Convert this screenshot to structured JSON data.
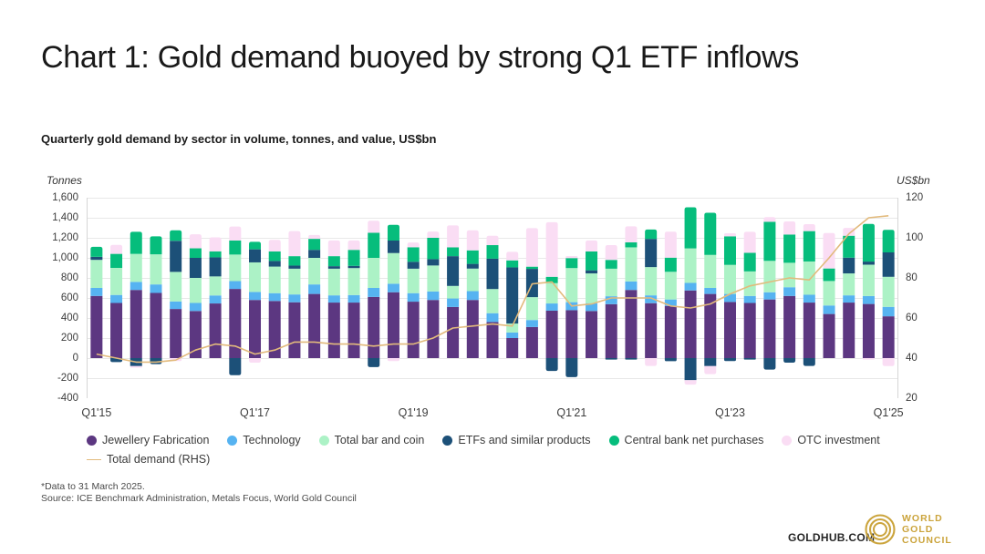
{
  "title": "Chart 1: Gold demand buoyed by strong Q1 ETF inflows",
  "subtitle": "Quarterly gold demand by sector in volume, tonnes, and value, US$bn",
  "footnote": {
    "line1": "*Data to 31 March 2025.",
    "line2": "Source: ICE Benchmark Administration, Metals Focus, World Gold Council"
  },
  "branding": {
    "goldhub": "GOLDHUB.COM",
    "logo_lines": [
      "WORLD",
      "GOLD",
      "COUNCIL"
    ],
    "logo_color": "#CBA43C"
  },
  "chart_data": {
    "type": "stacked-bar+line",
    "left_axis": {
      "title": "Tonnes",
      "min": -400,
      "max": 1600,
      "step": 200
    },
    "right_axis": {
      "title": "US$bn",
      "min": 20,
      "max": 120,
      "step": 20
    },
    "grid": {
      "color": "#e8e8e8",
      "border_color": "#d6d6d6"
    },
    "x_tick_labels": [
      "Q1'15",
      "Q1'17",
      "Q1'19",
      "Q1'21",
      "Q1'23",
      "Q1'25"
    ],
    "x_tick_indices": [
      0,
      8,
      16,
      24,
      32,
      40
    ],
    "categories": [
      "Q1'15",
      "Q2'15",
      "Q3'15",
      "Q4'15",
      "Q1'16",
      "Q2'16",
      "Q3'16",
      "Q4'16",
      "Q1'17",
      "Q2'17",
      "Q3'17",
      "Q4'17",
      "Q1'18",
      "Q2'18",
      "Q3'18",
      "Q4'18",
      "Q1'19",
      "Q2'19",
      "Q3'19",
      "Q4'19",
      "Q1'20",
      "Q2'20",
      "Q3'20",
      "Q4'20",
      "Q1'21",
      "Q2'21",
      "Q3'21",
      "Q4'21",
      "Q1'22",
      "Q2'22",
      "Q3'22",
      "Q4'22",
      "Q1'23",
      "Q2'23",
      "Q3'23",
      "Q4'23",
      "Q1'24",
      "Q2'24",
      "Q3'24",
      "Q4'24",
      "Q1'25"
    ],
    "series": [
      {
        "name": "Jewellery Fabrication",
        "color": "#5C3781",
        "values": [
          620,
          550,
          680,
          650,
          490,
          470,
          545,
          690,
          580,
          570,
          557,
          640,
          554,
          554,
          610,
          657,
          563,
          580,
          510,
          580,
          360,
          200,
          310,
          473,
          478,
          470,
          538,
          680,
          548,
          520,
          675,
          640,
          560,
          550,
          585,
          620,
          554,
          440,
          554,
          540,
          417
        ]
      },
      {
        "name": "Technology",
        "color": "#56B3F1",
        "values": [
          80,
          80,
          80,
          85,
          75,
          80,
          80,
          78,
          80,
          78,
          78,
          95,
          72,
          75,
          90,
          85,
          85,
          85,
          85,
          88,
          88,
          55,
          70,
          72,
          80,
          78,
          79,
          85,
          78,
          65,
          75,
          60,
          80,
          70,
          72,
          87,
          78,
          85,
          72,
          79,
          94
        ]
      },
      {
        "name": "Total bar and coin",
        "color": "#ACF2C6",
        "values": [
          280,
          270,
          280,
          300,
          295,
          250,
          190,
          265,
          295,
          265,
          257,
          265,
          266,
          269,
          300,
          306,
          244,
          259,
          125,
          225,
          241,
          90,
          228,
          203,
          340,
          297,
          275,
          340,
          282,
          276,
          344,
          330,
          290,
          245,
          313,
          244,
          332,
          244,
          219,
          313,
          300
        ]
      },
      {
        "name": "ETFs and similar products",
        "color": "#1C5078",
        "values": [
          30,
          -40,
          -80,
          -60,
          310,
          200,
          190,
          -170,
          130,
          56,
          31,
          80,
          25,
          22,
          -90,
          125,
          69,
          63,
          297,
          47,
          303,
          560,
          282,
          -128,
          -190,
          31,
          -15,
          -15,
          281,
          -31,
          -220,
          -80,
          -30,
          -15,
          -115,
          -45,
          -78,
          0,
          157,
          31,
          244
        ]
      },
      {
        "name": "Central bank net purchases",
        "color": "#06BD7C",
        "values": [
          100,
          140,
          220,
          180,
          105,
          95,
          60,
          140,
          75,
          95,
          94,
          110,
          100,
          160,
          250,
          156,
          145,
          213,
          88,
          135,
          135,
          70,
          22,
          63,
          100,
          188,
          88,
          50,
          94,
          141,
          410,
          420,
          285,
          185,
          390,
          282,
          303,
          125,
          219,
          376,
          225
        ]
      },
      {
        "name": "OTC investment",
        "color": "#FADDF4",
        "values": [
          0,
          90,
          -15,
          0,
          -30,
          140,
          140,
          140,
          -45,
          115,
          250,
          38,
          157,
          94,
          120,
          -30,
          47,
          62,
          219,
          200,
          94,
          85,
          385,
          545,
          20,
          110,
          147,
          160,
          -78,
          259,
          -45,
          -80,
          30,
          210,
          47,
          131,
          69,
          354,
          78,
          -15,
          -80
        ]
      }
    ],
    "line_series": {
      "name": "Total demand (RHS)",
      "color": "#E2BA7C",
      "values": [
        42,
        40,
        38,
        38,
        39,
        44,
        47,
        46,
        42,
        44,
        48,
        48,
        47,
        47,
        46,
        47,
        47,
        50,
        55,
        56,
        57,
        56,
        77,
        78,
        66,
        67,
        70,
        70,
        70,
        66,
        65,
        67,
        72,
        76,
        78,
        80,
        79,
        90,
        102,
        110,
        111
      ]
    }
  }
}
